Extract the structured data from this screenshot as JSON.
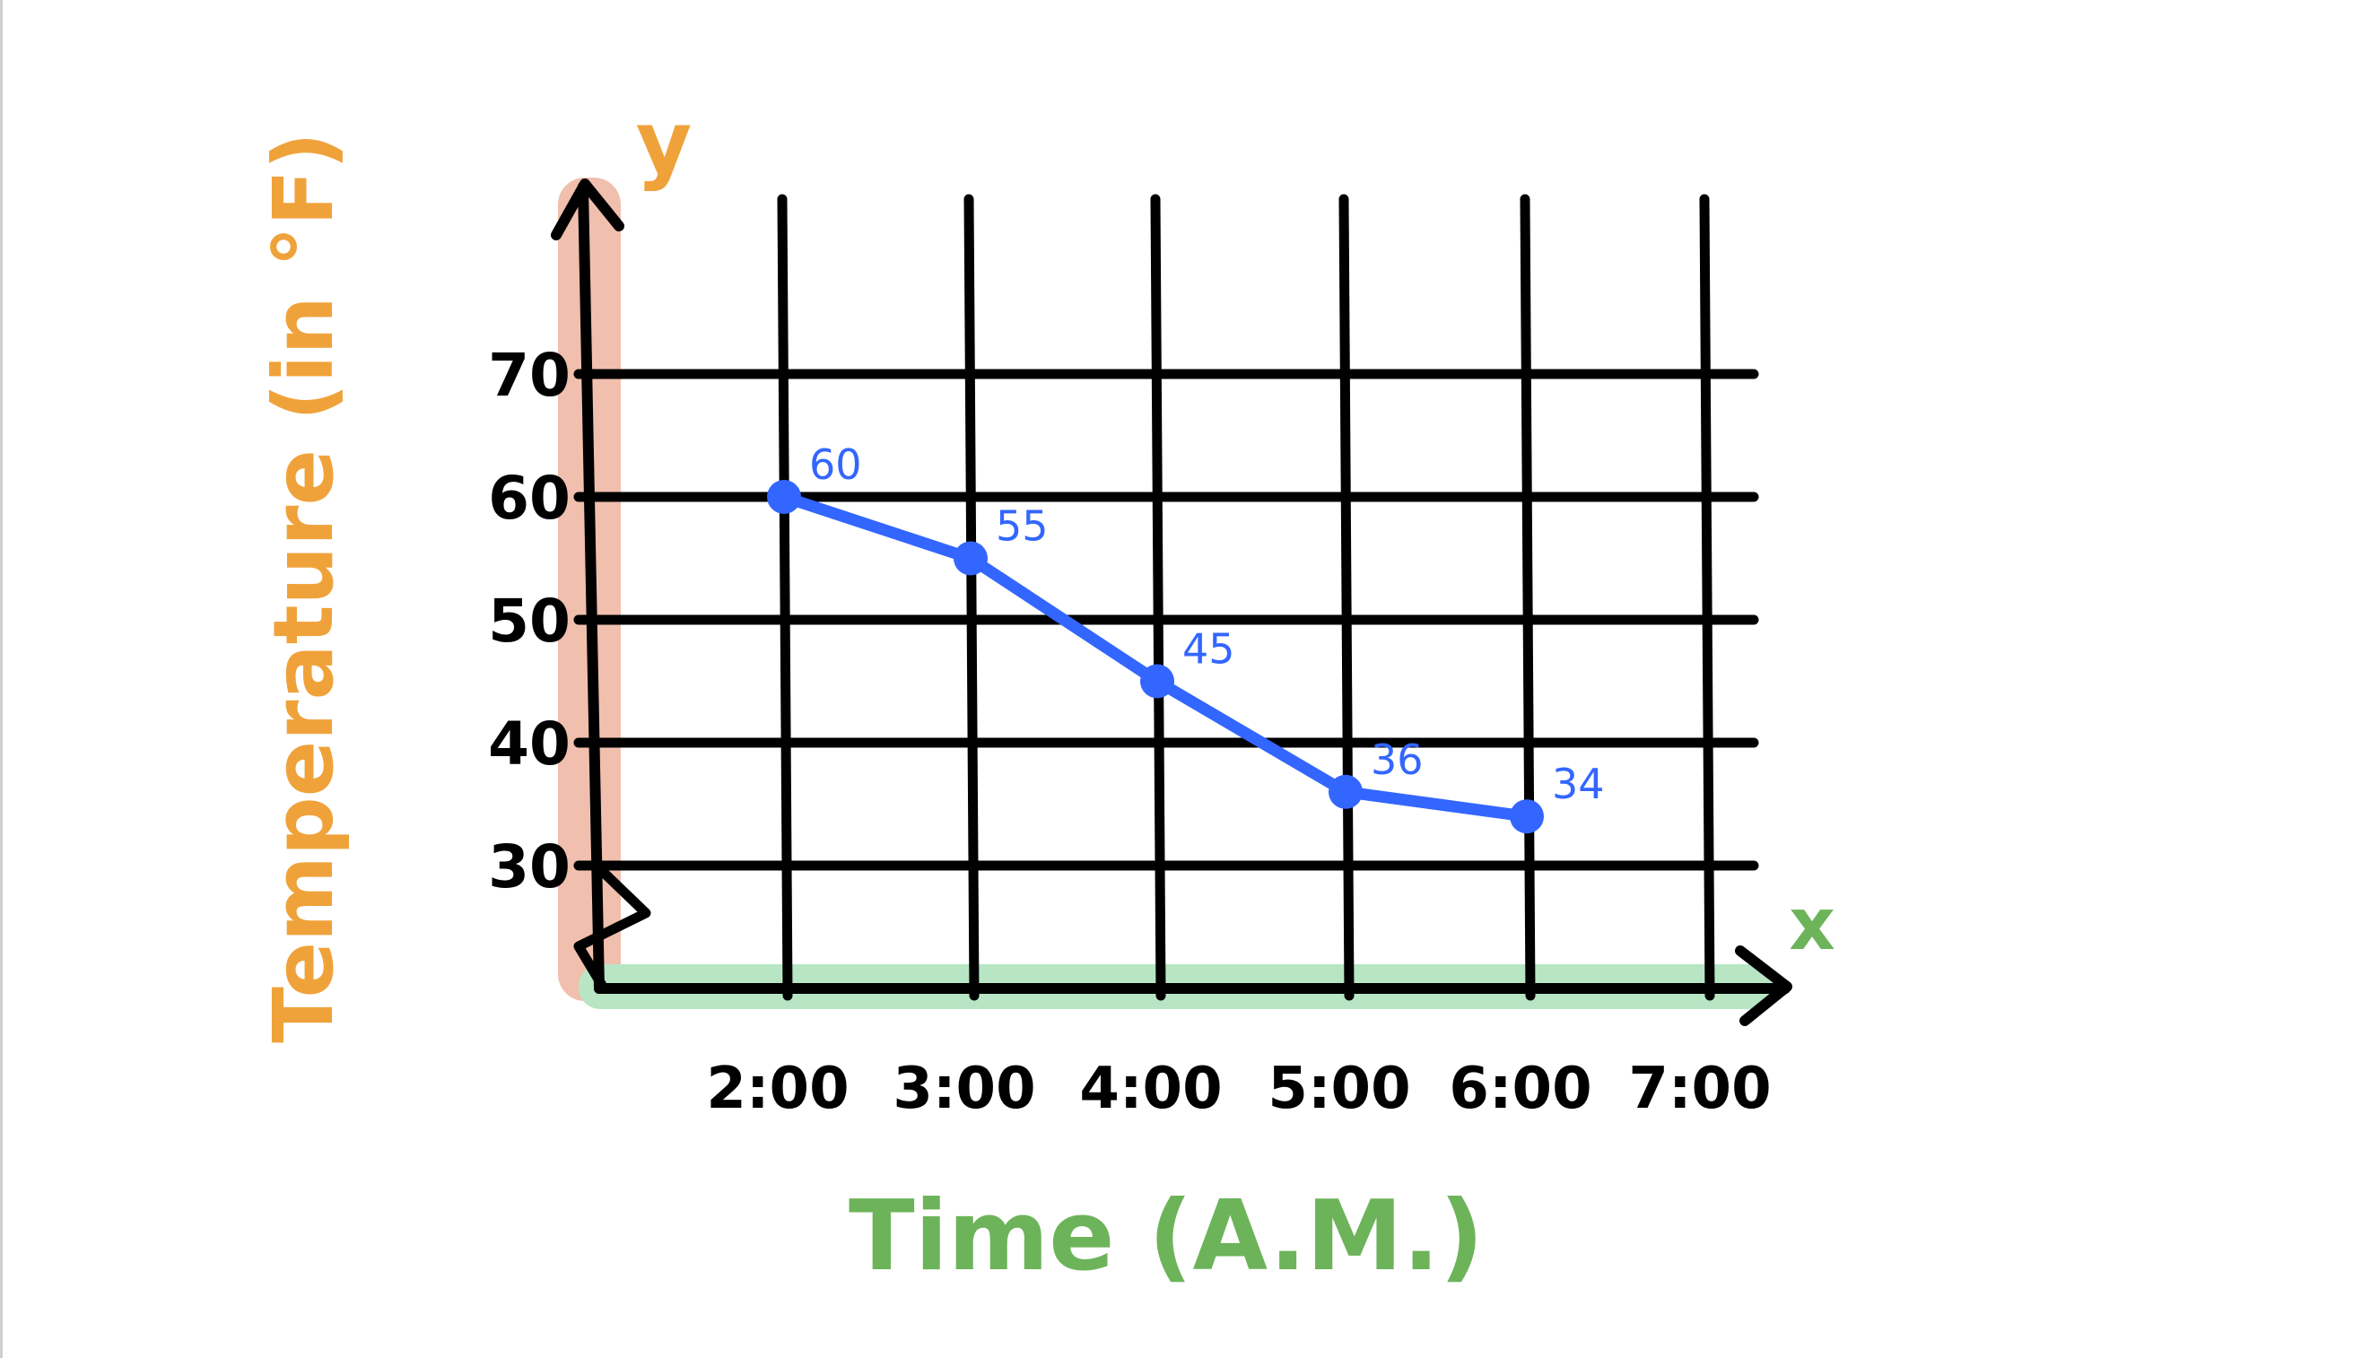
{
  "chart_data": {
    "type": "line",
    "title": "",
    "xlabel": "Time (A.M.)",
    "ylabel": "Temperature (in °F)",
    "x_axis_letter": "x",
    "y_axis_letter": "y",
    "categories": [
      "2:00",
      "3:00",
      "4:00",
      "5:00",
      "6:00",
      "7:00"
    ],
    "y_ticks": [
      "30",
      "40",
      "50",
      "60",
      "70"
    ],
    "y_tick_values": [
      30,
      40,
      50,
      60,
      70
    ],
    "ylim": [
      20,
      80
    ],
    "grid": true,
    "legend": "none",
    "series": [
      {
        "values": [
          60,
          55,
          45,
          36,
          34,
          null
        ],
        "labels": [
          "60",
          "55",
          "45",
          "36",
          "34",
          ""
        ]
      }
    ],
    "colors": {
      "line": "#3366ff",
      "grid": "#000000",
      "x_axis_highlight": "#b8e6c4",
      "y_axis_highlight": "#f0bfae",
      "x_title": "#6db35a",
      "y_title": "#f0a23a"
    }
  }
}
